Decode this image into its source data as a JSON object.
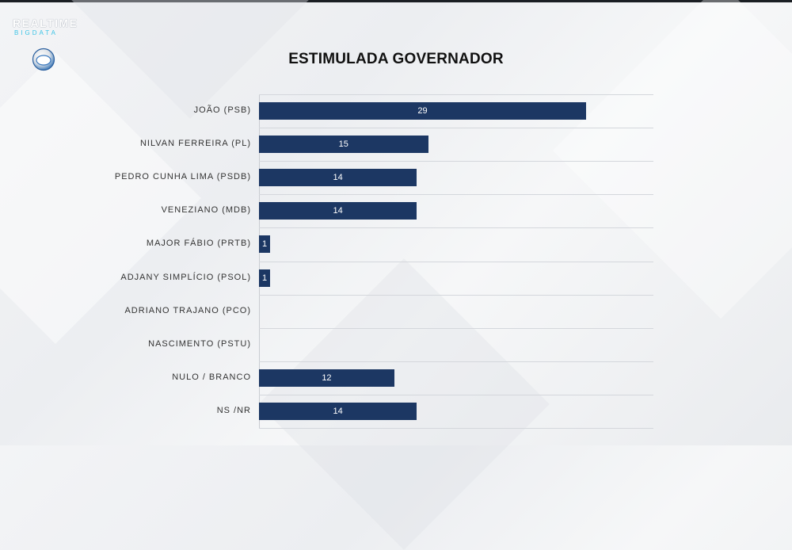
{
  "logo": {
    "top": "REALTIME",
    "bottom": "BIGDATA"
  },
  "colors": {
    "bar": "#1c3763",
    "bar_label": "#ffffff"
  },
  "chart_data": {
    "type": "bar",
    "orientation": "horizontal",
    "title": "ESTIMULADA GOVERNADOR",
    "xlabel": "",
    "ylabel": "",
    "categories": [
      "JOÃO (PSB)",
      "NILVAN FERREIRA (PL)",
      "PEDRO CUNHA LIMA (PSDB)",
      "VENEZIANO  (MDB)",
      "MAJOR FÁBIO (PRTB)",
      "ADJANY SIMPLÍCIO (PSOL)",
      "ADRIANO TRAJANO (PCO)",
      "NASCIMENTO (PSTU)",
      "NULO / BRANCO",
      "NS /NR"
    ],
    "values": [
      29,
      15,
      14,
      14,
      1,
      1,
      0,
      0,
      12,
      14
    ],
    "data_labels": [
      "29",
      "15",
      "14",
      "14",
      "1",
      "1",
      "0",
      "0",
      "12",
      "14"
    ],
    "xlim": [
      0,
      35
    ],
    "grid": true,
    "legend": "none"
  }
}
